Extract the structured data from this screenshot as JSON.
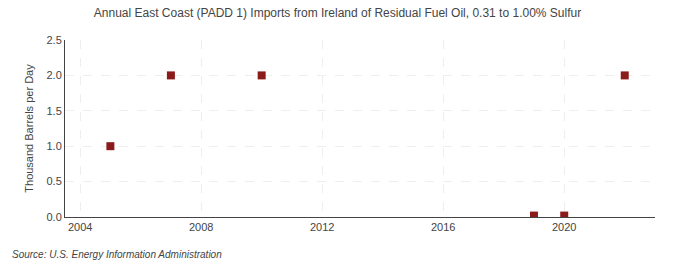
{
  "chart_data": {
    "type": "scatter",
    "title": "Annual East Coast (PADD 1) Imports from Ireland of Residual Fuel Oil, 0.31 to 1.00% Sulfur",
    "ylabel": "Thousand Barrels per Day",
    "annotations": [
      "Source: U.S. Energy Information Administration"
    ],
    "x": [
      2005,
      2007,
      2010,
      2019,
      2020,
      2022
    ],
    "values": [
      1.0,
      2.0,
      2.0,
      0.02,
      0.02,
      2.0
    ],
    "color": "#8b1a1a",
    "marker": "square",
    "xlim": [
      2003.5,
      2023
    ],
    "xticks": [
      2004,
      2008,
      2012,
      2016,
      2020
    ],
    "ylim": [
      0.0,
      2.5
    ],
    "yticks": [
      {
        "value": 0,
        "label": "0.0"
      },
      0.5,
      {
        "value": 1,
        "label": "1.0"
      },
      1.5,
      {
        "value": 2,
        "label": "2.0"
      },
      2.5
    ],
    "grid": true
  }
}
